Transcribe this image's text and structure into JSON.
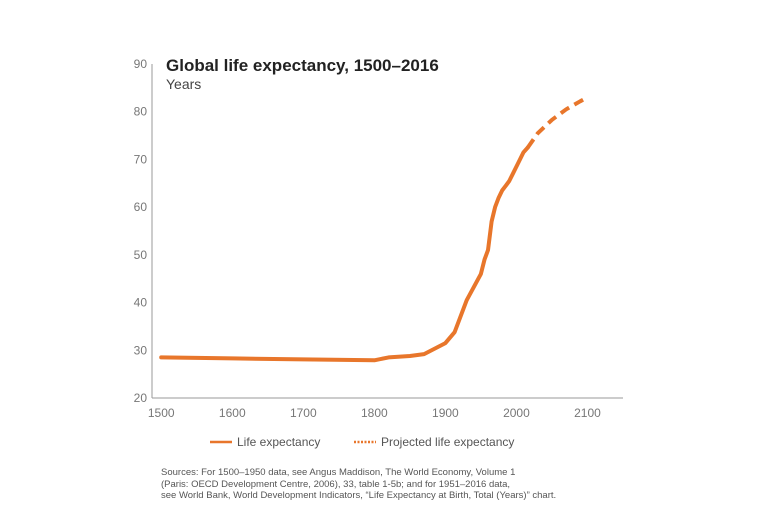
{
  "chart_data": {
    "type": "line",
    "title": "Global life expectancy, 1500–2016",
    "subtitle": "Years",
    "xlabel": "",
    "ylabel": "Years",
    "xlim": [
      1487,
      2150
    ],
    "ylim": [
      20,
      90
    ],
    "xticks": [
      1500,
      1600,
      1700,
      1800,
      1900,
      2000,
      2100
    ],
    "yticks": [
      20,
      30,
      40,
      50,
      60,
      70,
      80,
      90
    ],
    "legend_position": "bottom",
    "series": [
      {
        "name": "Life expectancy",
        "style": "solid",
        "color": "#E8762B",
        "x": [
          1500,
          1600,
          1700,
          1800,
          1820,
          1850,
          1870,
          1900,
          1913,
          1930,
          1950,
          1955,
          1960,
          1965,
          1970,
          1975,
          1980,
          1985,
          1990,
          1995,
          2000,
          2005,
          2010,
          2016
        ],
        "y": [
          28.5,
          28.3,
          28.1,
          27.9,
          28.5,
          28.8,
          29.2,
          31.5,
          33.8,
          40.5,
          46.0,
          49.0,
          51.0,
          57.0,
          60.0,
          62.0,
          63.5,
          64.5,
          65.5,
          67.0,
          68.5,
          70.0,
          71.5,
          72.5
        ]
      },
      {
        "name": "Projected life expectancy",
        "style": "dashed",
        "color": "#E8762B",
        "x": [
          2016,
          2030,
          2050,
          2070,
          2090,
          2100
        ],
        "y": [
          72.5,
          75.5,
          78.3,
          80.5,
          82.2,
          83.0
        ]
      }
    ]
  },
  "source": {
    "lines": [
      "Sources: For 1500–1950 data, see Angus Maddison, The World Economy, Volume 1",
      "(Paris: OECD Development Centre, 2006), 33, table 1-5b; and for 1951–2016 data,",
      "see World Bank, World Development Indicators, “Life Expectancy at Birth, Total (Years)” chart."
    ]
  }
}
